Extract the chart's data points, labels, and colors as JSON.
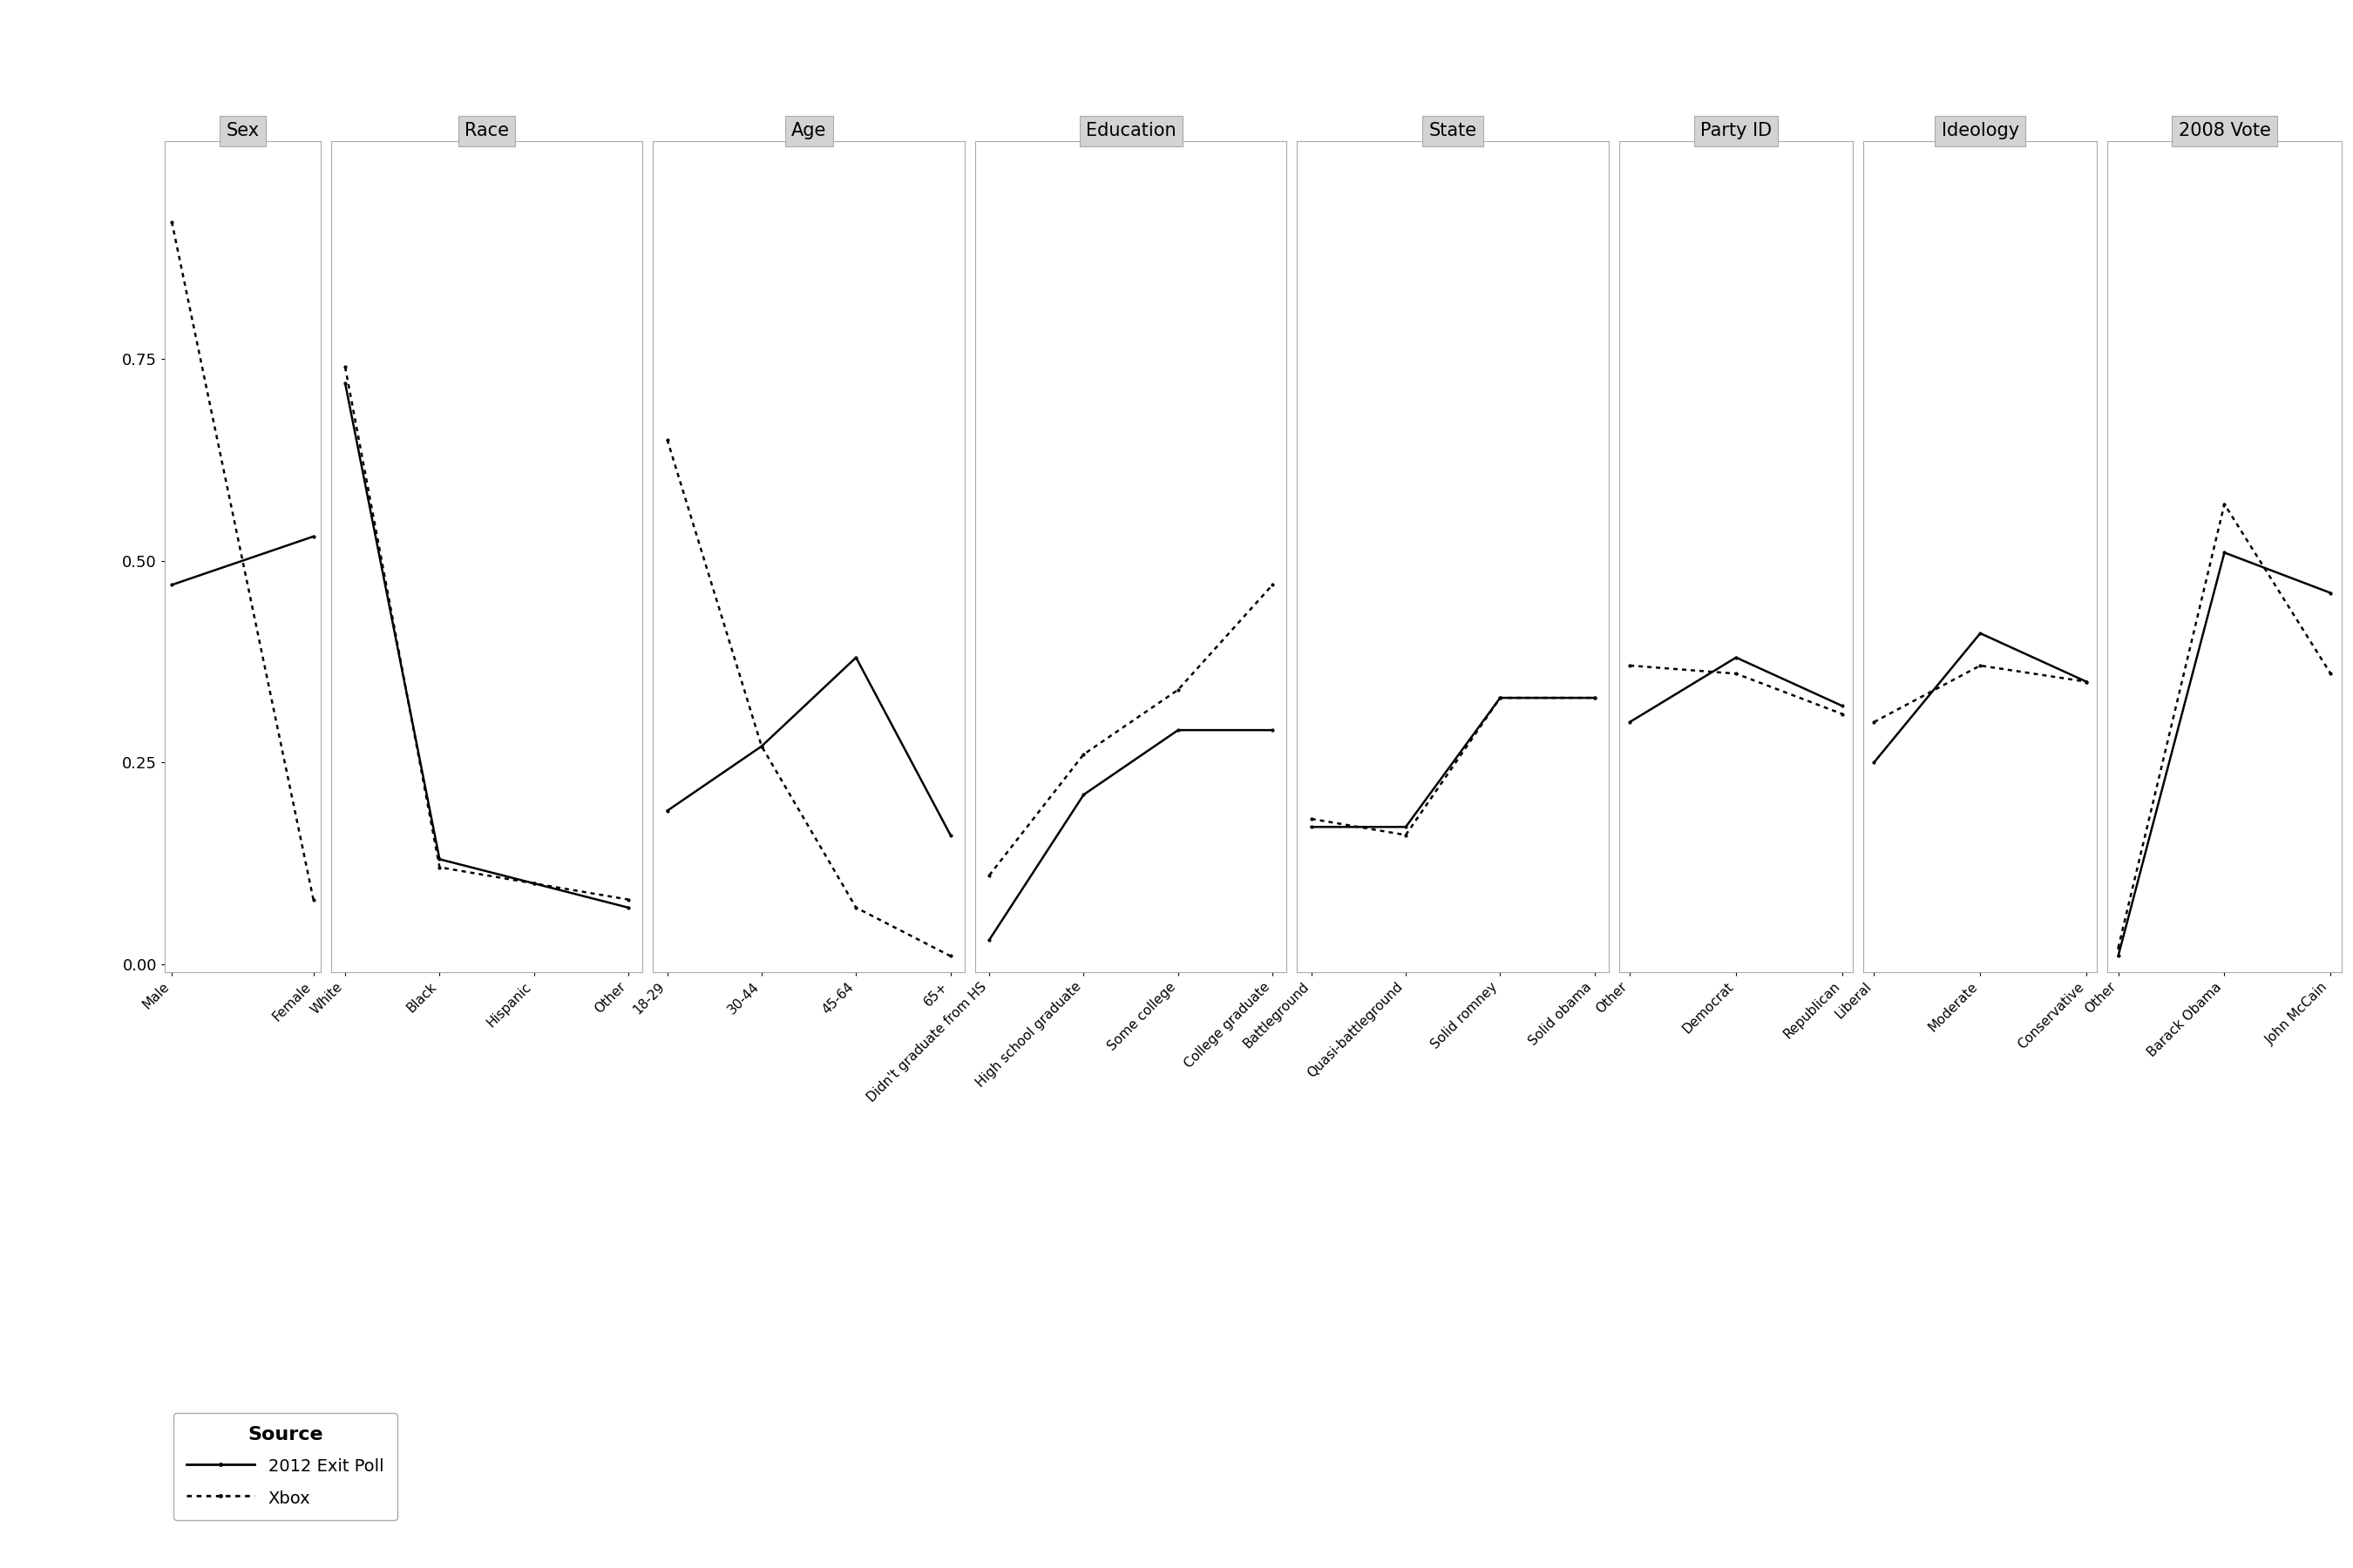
{
  "panels": [
    {
      "title": "Sex",
      "categories": [
        "Male",
        "Female"
      ],
      "exit_poll": [
        0.47,
        0.53
      ],
      "xbox": [
        0.92,
        0.08
      ]
    },
    {
      "title": "Race",
      "categories": [
        "White",
        "Black",
        "Hispanic",
        "Other"
      ],
      "exit_poll": [
        0.72,
        0.13,
        0.1,
        0.07
      ],
      "xbox": [
        0.74,
        0.12,
        0.1,
        0.08
      ]
    },
    {
      "title": "Age",
      "categories": [
        "18-29",
        "30-44",
        "45-64",
        "65+"
      ],
      "exit_poll": [
        0.19,
        0.27,
        0.38,
        0.16
      ],
      "xbox": [
        0.65,
        0.27,
        0.07,
        0.01
      ]
    },
    {
      "title": "Education",
      "categories": [
        "Didn't graduate from HS",
        "High school graduate",
        "Some college",
        "College graduate"
      ],
      "exit_poll": [
        0.03,
        0.21,
        0.29,
        0.29
      ],
      "xbox": [
        0.11,
        0.26,
        0.34,
        0.47
      ]
    },
    {
      "title": "State",
      "categories": [
        "Battleground",
        "Quasi-battleground",
        "Solid romney",
        "Solid obama"
      ],
      "exit_poll": [
        0.17,
        0.17,
        0.33,
        0.33
      ],
      "xbox": [
        0.18,
        0.16,
        0.33,
        0.33
      ]
    },
    {
      "title": "Party ID",
      "categories": [
        "Other",
        "Democrat",
        "Republican"
      ],
      "exit_poll": [
        0.3,
        0.38,
        0.32
      ],
      "xbox": [
        0.37,
        0.36,
        0.31
      ]
    },
    {
      "title": "Ideology",
      "categories": [
        "Liberal",
        "Moderate",
        "Conservative"
      ],
      "exit_poll": [
        0.25,
        0.41,
        0.35
      ],
      "xbox": [
        0.3,
        0.37,
        0.35
      ]
    },
    {
      "title": "2008 Vote",
      "categories": [
        "Other",
        "Barack Obama",
        "John McCain"
      ],
      "exit_poll": [
        0.01,
        0.51,
        0.46
      ],
      "xbox": [
        0.02,
        0.57,
        0.36
      ]
    }
  ],
  "ylim": [
    -0.01,
    1.02
  ],
  "yticks": [
    0.0,
    0.25,
    0.5,
    0.75
  ],
  "yticklabels": [
    "0.00",
    "0.25",
    "0.50",
    "0.75"
  ],
  "exit_poll_color": "#000000",
  "xbox_color": "#000000",
  "panel_bg": "#ffffff",
  "header_bg": "#d3d3d3",
  "legend_title": "Source",
  "legend_exit": "2012 Exit Poll",
  "legend_xbox": "Xbox",
  "line_width": 1.8,
  "dot_size": 4.0,
  "header_fontsize": 15,
  "tick_fontsize": 13,
  "xtick_fontsize": 11
}
